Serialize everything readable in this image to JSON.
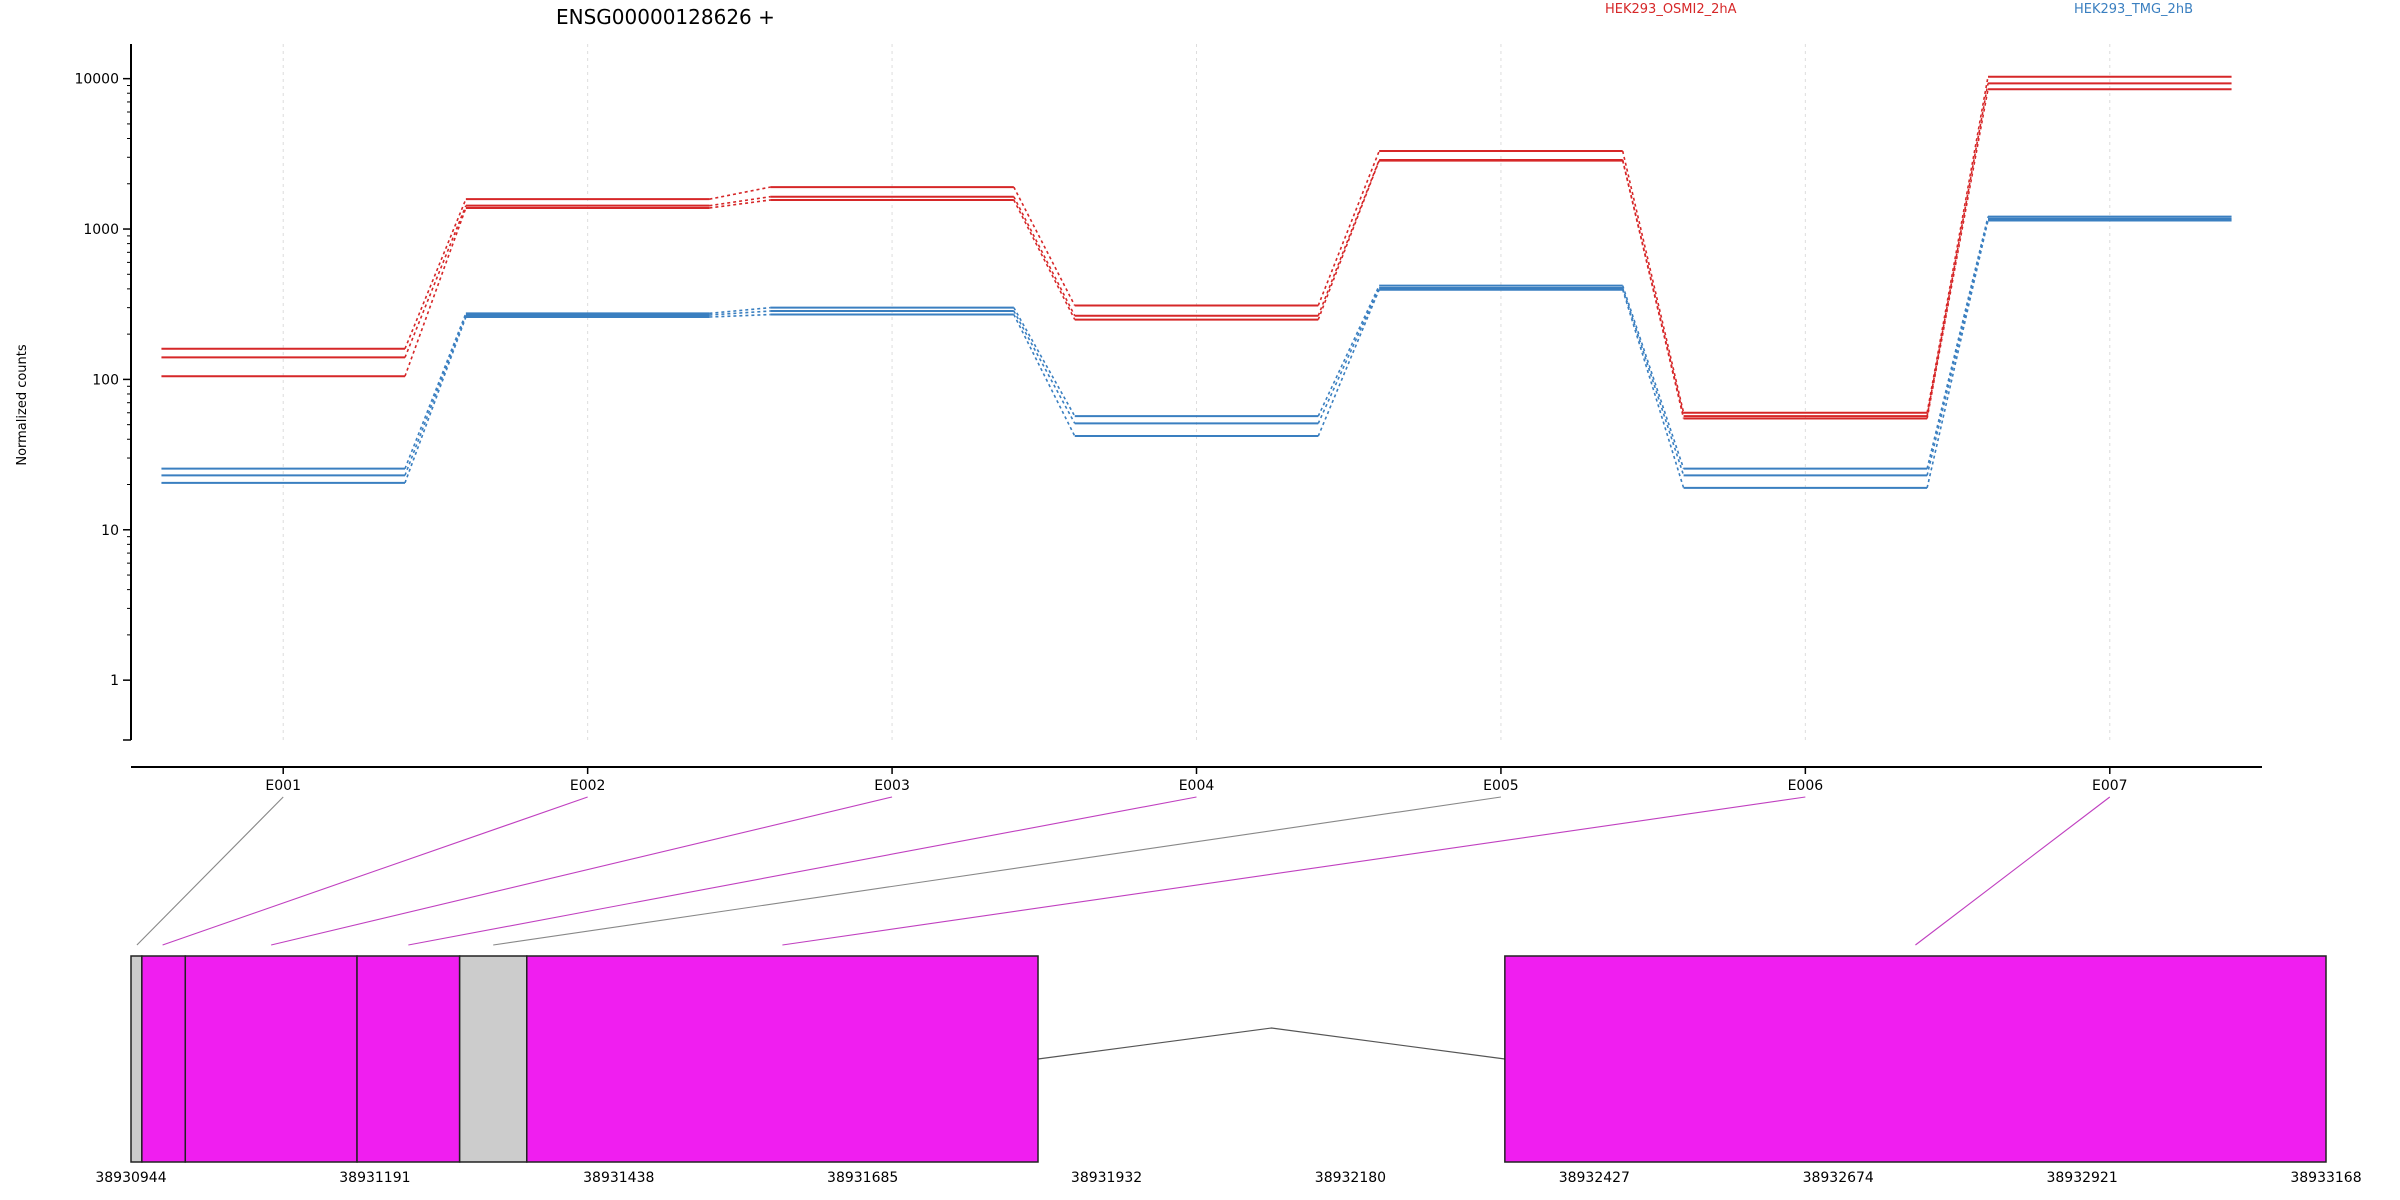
{
  "chart_data": {
    "type": "line",
    "title": "ENSG00000128626 +",
    "ylabel": "Normalized counts",
    "xlabel": "",
    "y_scale": "log",
    "ylim": [
      0.4,
      17000
    ],
    "y_ticks": [
      1,
      10,
      100,
      1000,
      10000
    ],
    "y_tick_labels": [
      "1",
      "10",
      "100",
      "1000",
      "10000"
    ],
    "grid": "vertical dotted lines at exon centers",
    "legend_placement": "top-right",
    "categories": [
      "E001",
      "E002",
      "E003",
      "E004",
      "E005",
      "E006",
      "E007"
    ],
    "series": [
      {
        "name": "HEK293_OSMI2_2hA",
        "color": "#d62728",
        "group": "HEK293_OSMI2_2hA",
        "values": [
          160,
          1580,
          1900,
          310,
          3300,
          60,
          10300
        ]
      },
      {
        "name": "",
        "color": "#d62728",
        "group": "HEK293_OSMI2_2hA",
        "values": [
          140,
          1430,
          1640,
          265,
          2880,
          57,
          9300
        ]
      },
      {
        "name": "",
        "color": "#d62728",
        "group": "HEK293_OSMI2_2hA",
        "values": [
          105,
          1380,
          1560,
          250,
          2850,
          55,
          8500
        ]
      },
      {
        "name": "HEK293_TMG_2hB",
        "color": "#3a7fc0",
        "group": "HEK293_TMG_2hB",
        "values": [
          25.5,
          275,
          300,
          57,
          420,
          25.5,
          1210
        ]
      },
      {
        "name": "",
        "color": "#3a7fc0",
        "group": "HEK293_TMG_2hB",
        "values": [
          23,
          268,
          285,
          51,
          405,
          23,
          1170
        ]
      },
      {
        "name": "",
        "color": "#3a7fc0",
        "group": "HEK293_TMG_2hB",
        "values": [
          20.5,
          260,
          270,
          42,
          395,
          19,
          1140
        ]
      }
    ],
    "legend": [
      {
        "label": "HEK293_OSMI2_2hA",
        "color": "#d62728"
      },
      {
        "label": "HEK293_TMG_2hB",
        "color": "#3a7fc0"
      }
    ],
    "gene_model": {
      "coordinate_range": [
        38930944,
        38933168
      ],
      "axis_tick_labels": [
        "38930944",
        "38931191",
        "38931438",
        "38931685",
        "38931932",
        "38932180",
        "38932427",
        "38932674",
        "38932921",
        "38933168"
      ],
      "exon_color": "#f01ef0",
      "non_tested_color": "#cccccc",
      "blocks": [
        {
          "start": 38930944,
          "end": 38930955,
          "kind": "non-tested"
        },
        {
          "start": 38930955,
          "end": 38930999,
          "kind": "exon"
        },
        {
          "start": 38930999,
          "end": 38931173,
          "kind": "exon"
        },
        {
          "start": 38931173,
          "end": 38931277,
          "kind": "exon"
        },
        {
          "start": 38931277,
          "end": 38931345,
          "kind": "non-tested"
        },
        {
          "start": 38931345,
          "end": 38931863,
          "kind": "exon"
        },
        {
          "start": 38932336,
          "end": 38933168,
          "kind": "exon"
        }
      ],
      "intron": {
        "start": 38931863,
        "end": 38932336
      },
      "exon_links": [
        {
          "exon": "E001",
          "pos": 38930950,
          "color": "#888888"
        },
        {
          "exon": "E002",
          "pos": 38930976,
          "color": "#c040c0"
        },
        {
          "exon": "E003",
          "pos": 38931086,
          "color": "#c040c0"
        },
        {
          "exon": "E004",
          "pos": 38931225,
          "color": "#c040c0"
        },
        {
          "exon": "E005",
          "pos": 38931311,
          "color": "#888888"
        },
        {
          "exon": "E006",
          "pos": 38931604,
          "color": "#c040c0"
        },
        {
          "exon": "E007",
          "pos": 38932752,
          "color": "#c040c0"
        }
      ]
    }
  }
}
